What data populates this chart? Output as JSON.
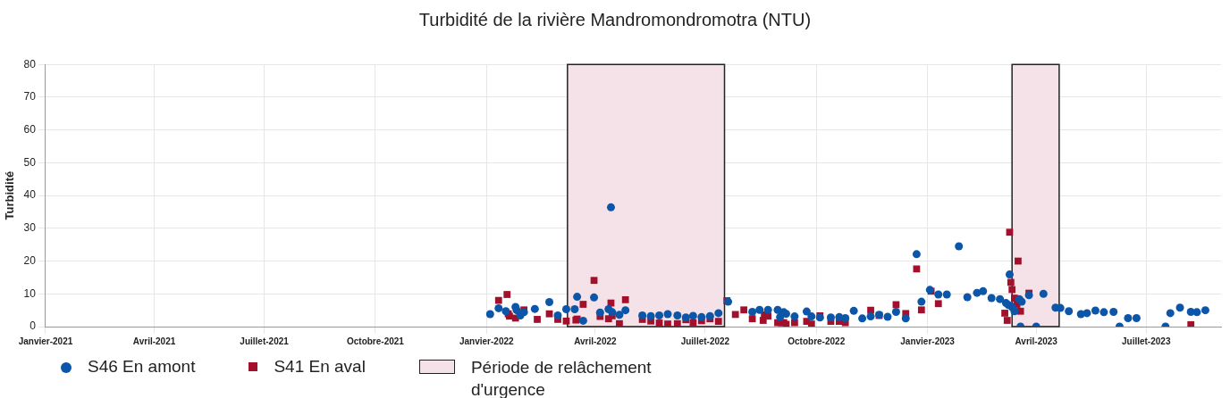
{
  "chart_data": {
    "type": "scatter",
    "title": "Turbidité de la rivière Mandromondromotra (NTU)",
    "ylabel": "Turbidité",
    "xlim": [
      "2021-01-01",
      "2023-09-01"
    ],
    "xticks": [
      {
        "value": "2021-01-01",
        "label": "Janvier-2021"
      },
      {
        "value": "2021-04-01",
        "label": "Avril-2021"
      },
      {
        "value": "2021-07-01",
        "label": "Juillet-2021"
      },
      {
        "value": "2021-10-01",
        "label": "Octobre-2021"
      },
      {
        "value": "2022-01-01",
        "label": "Janvier-2022"
      },
      {
        "value": "2022-04-01",
        "label": "Avril-2022"
      },
      {
        "value": "2022-07-01",
        "label": "Juillet-2022"
      },
      {
        "value": "2022-10-01",
        "label": "Octobre-2022"
      },
      {
        "value": "2023-01-01",
        "label": "Janvier-2023"
      },
      {
        "value": "2023-04-01",
        "label": "Avril-2023"
      },
      {
        "value": "2023-07-01",
        "label": "Juillet-2023"
      }
    ],
    "ylim": [
      0,
      80
    ],
    "yticks": [
      0,
      10,
      20,
      30,
      40,
      50,
      60,
      70,
      80
    ],
    "grid": true,
    "legend": "bottom",
    "series": [
      {
        "name": "S46 En amont",
        "color": "#0b56a8",
        "marker": "circle",
        "x": [
          "2022-01-04",
          "2022-01-11",
          "2022-01-17",
          "2022-01-25",
          "2022-01-26",
          "2022-01-29",
          "2022-02-01",
          "2022-02-10",
          "2022-02-22",
          "2022-03-01",
          "2022-03-08",
          "2022-03-15",
          "2022-03-17",
          "2022-03-22",
          "2022-03-31",
          "2022-04-05",
          "2022-04-12",
          "2022-04-14",
          "2022-04-15",
          "2022-04-21",
          "2022-04-26",
          "2022-05-10",
          "2022-05-17",
          "2022-05-24",
          "2022-05-31",
          "2022-06-08",
          "2022-06-15",
          "2022-06-21",
          "2022-06-28",
          "2022-07-05",
          "2022-07-12",
          "2022-07-20",
          "2022-08-09",
          "2022-08-15",
          "2022-08-22",
          "2022-08-30",
          "2022-09-01",
          "2022-09-04",
          "2022-09-06",
          "2022-09-13",
          "2022-09-23",
          "2022-09-27",
          "2022-10-04",
          "2022-10-13",
          "2022-10-20",
          "2022-10-25",
          "2022-11-01",
          "2022-11-08",
          "2022-11-15",
          "2022-11-22",
          "2022-11-29",
          "2022-12-06",
          "2022-12-14",
          "2022-12-23",
          "2022-12-27",
          "2023-01-03",
          "2023-01-10",
          "2023-01-17",
          "2023-01-27",
          "2023-02-03",
          "2023-02-11",
          "2023-02-16",
          "2023-02-23",
          "2023-03-02",
          "2023-03-07",
          "2023-03-09",
          "2023-03-10",
          "2023-03-12",
          "2023-03-14",
          "2023-03-18",
          "2023-03-19",
          "2023-03-20",
          "2023-03-26",
          "2023-04-01",
          "2023-04-07",
          "2023-04-17",
          "2023-04-21",
          "2023-04-28",
          "2023-05-08",
          "2023-05-13",
          "2023-05-20",
          "2023-05-27",
          "2023-06-04",
          "2023-06-09",
          "2023-06-16",
          "2023-06-23",
          "2023-07-17",
          "2023-07-21",
          "2023-07-29",
          "2023-08-07",
          "2023-08-12",
          "2023-08-19"
        ],
        "values": [
          3.8,
          5.6,
          4.7,
          6.0,
          5.0,
          3.4,
          4.4,
          5.4,
          7.5,
          3.4,
          5.3,
          5.3,
          9.1,
          1.8,
          8.9,
          4.3,
          5.3,
          36.4,
          4.4,
          3.6,
          5.0,
          3.4,
          3.2,
          3.4,
          3.8,
          3.4,
          2.8,
          3.3,
          2.9,
          3.2,
          4.1,
          7.6,
          4.5,
          5.1,
          5.1,
          5.1,
          2.9,
          4.4,
          3.9,
          3.1,
          4.6,
          3.1,
          2.8,
          2.8,
          2.9,
          2.6,
          4.8,
          2.5,
          3.1,
          3.6,
          3.0,
          4.5,
          2.5,
          22.1,
          7.6,
          11.2,
          9.8,
          9.8,
          24.5,
          9.0,
          10.3,
          10.8,
          8.7,
          8.4,
          7.2,
          6.6,
          15.9,
          6.0,
          4.7,
          8.4,
          0,
          7.6,
          9.6,
          0,
          10.0,
          5.8,
          5.7,
          4.7,
          3.8,
          4.1,
          4.9,
          4.4,
          4.5,
          0,
          2.6,
          2.6,
          0,
          4.1,
          5.8,
          4.5,
          4.4,
          5.0
        ]
      },
      {
        "name": "S41 En aval",
        "color": "#a3102b",
        "marker": "square",
        "x": [
          "2022-01-11",
          "2022-01-18",
          "2022-01-19",
          "2022-01-20",
          "2022-01-25",
          "2022-02-01",
          "2022-02-12",
          "2022-02-22",
          "2022-03-01",
          "2022-03-08",
          "2022-03-16",
          "2022-03-17",
          "2022-03-22",
          "2022-03-31",
          "2022-04-05",
          "2022-04-12",
          "2022-04-14",
          "2022-04-15",
          "2022-04-21",
          "2022-04-26",
          "2022-05-10",
          "2022-05-17",
          "2022-05-24",
          "2022-05-31",
          "2022-06-08",
          "2022-06-15",
          "2022-06-21",
          "2022-06-28",
          "2022-07-05",
          "2022-07-12",
          "2022-07-19",
          "2022-07-26",
          "2022-08-02",
          "2022-08-09",
          "2022-08-18",
          "2022-08-19",
          "2022-08-22",
          "2022-08-30",
          "2022-09-02",
          "2022-09-04",
          "2022-09-06",
          "2022-09-13",
          "2022-09-23",
          "2022-09-27",
          "2022-10-04",
          "2022-10-13",
          "2022-10-20",
          "2022-10-25",
          "2022-11-15",
          "2022-11-22",
          "2022-12-06",
          "2022-12-14",
          "2022-12-23",
          "2022-12-27",
          "2023-01-04",
          "2023-01-10",
          "2023-03-06",
          "2023-03-08",
          "2023-03-10",
          "2023-03-11",
          "2023-03-12",
          "2023-03-14",
          "2023-03-16",
          "2023-03-17",
          "2023-03-19",
          "2023-03-26",
          "2023-08-07"
        ],
        "values": [
          8.0,
          9.8,
          3.9,
          3.2,
          2.6,
          5.1,
          2.2,
          3.9,
          2.2,
          1.7,
          2.0,
          2.3,
          6.8,
          14.1,
          3.1,
          2.4,
          7.2,
          3.3,
          0.9,
          8.2,
          2.2,
          1.7,
          1.1,
          0.8,
          0.9,
          2.1,
          1.2,
          1.8,
          2.4,
          1.6,
          7.9,
          3.7,
          5.1,
          2.4,
          1.9,
          3.6,
          3.2,
          1.2,
          1.2,
          1.2,
          0.7,
          1.2,
          1.6,
          0.8,
          3.3,
          1.6,
          1.6,
          1.2,
          5.0,
          3.4,
          6.7,
          4.0,
          17.6,
          5.1,
          10.8,
          7.0,
          4.1,
          1.9,
          28.8,
          13.5,
          11.3,
          8.7,
          6.8,
          20.0,
          4.7,
          10.2,
          0.6
        ]
      }
    ],
    "bands": [
      {
        "axis": "x",
        "from": "2022-03-09",
        "to": "2022-07-17",
        "label": "Période de relâchement d'urgence",
        "color": "#f5e2e8"
      },
      {
        "axis": "x",
        "from": "2023-03-12",
        "to": "2023-04-20",
        "color": "#f5e2e8"
      }
    ]
  }
}
